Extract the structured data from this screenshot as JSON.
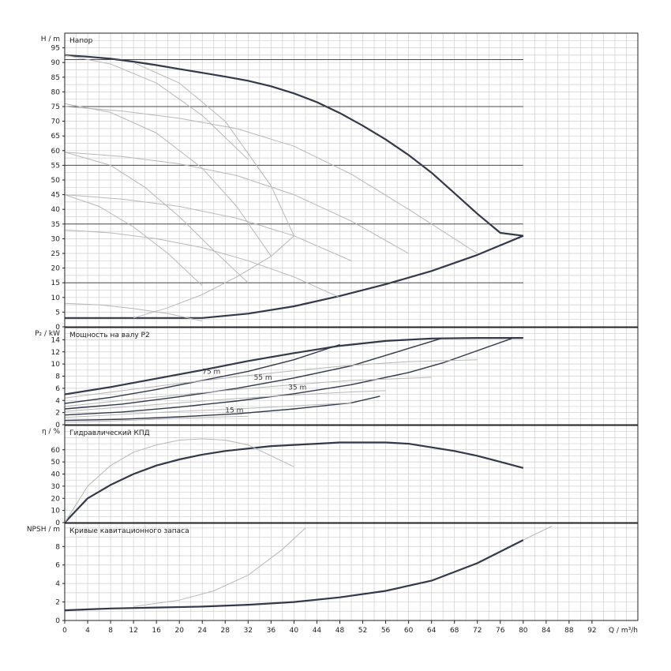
{
  "chart_data": [
    {
      "type": "line",
      "title": "Напор",
      "ylabel": "H / m",
      "xlim": [
        0,
        100
      ],
      "ylim": [
        0,
        100
      ],
      "yticks": [
        0,
        5,
        10,
        15,
        20,
        25,
        30,
        35,
        40,
        45,
        50,
        55,
        60,
        65,
        70,
        75,
        80,
        85,
        90,
        95
      ],
      "grid": true,
      "series": [
        {
          "role": "main",
          "x": [
            0,
            4,
            8,
            12,
            16,
            20,
            24,
            28,
            32,
            36,
            40,
            44,
            48,
            52,
            56,
            60,
            64,
            68,
            72,
            76,
            80
          ],
          "y": [
            92.5,
            92,
            91.3,
            90.3,
            89.1,
            87.8,
            86.5,
            85.2,
            83.8,
            81.9,
            79.5,
            76.5,
            72.8,
            68.5,
            63.8,
            58.5,
            52.5,
            45.5,
            38.5,
            32,
            31
          ]
        },
        {
          "role": "main",
          "x": [
            0,
            8,
            16,
            24,
            32,
            40,
            48,
            56,
            64,
            72,
            80
          ],
          "y": [
            3,
            3,
            3,
            3,
            4.5,
            7,
            10.5,
            14.5,
            19,
            24.5,
            31
          ]
        },
        {
          "role": "guide",
          "x": [
            0,
            80
          ],
          "y": [
            91,
            91
          ]
        },
        {
          "role": "guide",
          "x": [
            0,
            80
          ],
          "y": [
            75,
            75
          ]
        },
        {
          "role": "guide",
          "x": [
            0,
            80
          ],
          "y": [
            55,
            55
          ]
        },
        {
          "role": "guide",
          "x": [
            0,
            80
          ],
          "y": [
            35,
            35
          ]
        },
        {
          "role": "guide",
          "x": [
            0,
            80
          ],
          "y": [
            15,
            15
          ]
        },
        {
          "role": "thin",
          "x": [
            0,
            10,
            20,
            30,
            40,
            50,
            60,
            72
          ],
          "y": [
            75,
            73.5,
            71,
            67.5,
            61.5,
            52,
            40,
            25
          ]
        },
        {
          "role": "thin",
          "x": [
            0,
            10,
            20,
            30,
            40,
            50,
            60
          ],
          "y": [
            59.5,
            58,
            55.5,
            51.5,
            45,
            36,
            25
          ]
        },
        {
          "role": "thin",
          "x": [
            0,
            10,
            20,
            30,
            40,
            50
          ],
          "y": [
            45,
            43.5,
            41,
            37,
            31,
            22.5
          ]
        },
        {
          "role": "thin",
          "x": [
            0,
            8,
            16,
            24,
            32,
            40,
            48
          ],
          "y": [
            33,
            32,
            30,
            27,
            22.5,
            17,
            10
          ]
        },
        {
          "role": "thin",
          "x": [
            0,
            6,
            12,
            18,
            24
          ],
          "y": [
            8,
            7.5,
            6.2,
            4.5,
            2
          ]
        },
        {
          "role": "thin",
          "x": [
            0,
            8,
            16,
            24,
            32
          ],
          "y": [
            92.5,
            89.5,
            83,
            72,
            57
          ]
        },
        {
          "role": "thin",
          "x": [
            12,
            20,
            28,
            36,
            40
          ],
          "y": [
            90,
            83,
            70,
            48,
            31
          ]
        },
        {
          "role": "thin",
          "x": [
            0,
            8,
            16,
            24,
            30,
            36
          ],
          "y": [
            76,
            73,
            66,
            54,
            41,
            24
          ]
        },
        {
          "role": "thin",
          "x": [
            0,
            8,
            14,
            20,
            26,
            32
          ],
          "y": [
            59.5,
            55,
            47.5,
            37.5,
            26,
            15
          ]
        },
        {
          "role": "thin",
          "x": [
            0,
            6,
            12,
            18,
            24
          ],
          "y": [
            45,
            41,
            34,
            25,
            14
          ]
        },
        {
          "role": "thin",
          "x": [
            12,
            18,
            24,
            30,
            36,
            40
          ],
          "y": [
            3,
            6.5,
            11,
            17,
            24,
            31
          ]
        }
      ]
    },
    {
      "type": "line",
      "title": "Мощность на валу P2",
      "ylabel": "P₂ / kW",
      "xlim": [
        0,
        100
      ],
      "ylim": [
        0,
        16
      ],
      "yticks": [
        0,
        2,
        4,
        6,
        8,
        10,
        12,
        14
      ],
      "grid": true,
      "annotations": [
        {
          "text": "75 m",
          "x": 24,
          "y": 8.4
        },
        {
          "text": "55 m",
          "x": 33,
          "y": 7.4
        },
        {
          "text": "35 m",
          "x": 39,
          "y": 5.8
        },
        {
          "text": "15 m",
          "x": 28,
          "y": 2.0
        }
      ],
      "series": [
        {
          "role": "main",
          "x": [
            0,
            8,
            16,
            24,
            32,
            40,
            48,
            56,
            64,
            72,
            80
          ],
          "y": [
            5,
            6.2,
            7.6,
            9,
            10.5,
            11.8,
            13,
            13.8,
            14.2,
            14.3,
            14.3
          ]
        },
        {
          "role": "main",
          "x": [
            0,
            8,
            16,
            24,
            32,
            40,
            48
          ],
          "y": [
            3.5,
            4.5,
            5.8,
            7.3,
            8.8,
            10.7,
            13.2
          ]
        },
        {
          "role": "main",
          "x": [
            0,
            10,
            20,
            30,
            40,
            50,
            66
          ],
          "y": [
            2.6,
            3.4,
            4.6,
            6,
            7.7,
            9.7,
            14.3
          ]
        },
        {
          "role": "main",
          "x": [
            0,
            10,
            20,
            30,
            40,
            50,
            60,
            66,
            78
          ],
          "y": [
            1.6,
            2.1,
            2.9,
            3.9,
            5.1,
            6.6,
            8.6,
            10.2,
            14.2
          ]
        },
        {
          "role": "main",
          "x": [
            0,
            10,
            20,
            30,
            40,
            50,
            55
          ],
          "y": [
            0.7,
            0.9,
            1.3,
            1.8,
            2.6,
            3.6,
            4.7
          ]
        },
        {
          "role": "thin",
          "x": [
            0,
            10,
            20,
            30,
            40,
            50,
            60,
            72
          ],
          "y": [
            4.4,
            5.6,
            6.8,
            7.9,
            8.9,
            9.8,
            10.4,
            10.7
          ]
        },
        {
          "role": "thin",
          "x": [
            0,
            10,
            20,
            30,
            40,
            50,
            64
          ],
          "y": [
            3,
            4,
            4.9,
            5.8,
            6.6,
            7.3,
            7.8
          ]
        },
        {
          "role": "thin",
          "x": [
            0,
            10,
            20,
            30,
            40,
            50,
            56
          ],
          "y": [
            2.2,
            2.9,
            3.6,
            4.3,
            4.9,
            5.4,
            5.6
          ]
        },
        {
          "role": "thin",
          "x": [
            0,
            10,
            20,
            30,
            40,
            50
          ],
          "y": [
            1.2,
            1.7,
            2.2,
            2.6,
            3.1,
            3.6
          ]
        },
        {
          "role": "thin",
          "x": [
            0,
            8,
            16,
            24,
            32
          ],
          "y": [
            0.4,
            0.6,
            0.9,
            1.2,
            1.4
          ]
        }
      ]
    },
    {
      "type": "line",
      "title": "Гидравлический КПД",
      "ylabel": "η / %",
      "xlim": [
        0,
        100
      ],
      "ylim": [
        0,
        80
      ],
      "yticks": [
        0,
        10,
        20,
        30,
        40,
        50,
        60
      ],
      "grid": true,
      "series": [
        {
          "role": "main",
          "x": [
            0,
            4,
            8,
            12,
            16,
            20,
            24,
            28,
            32,
            36,
            40,
            44,
            48,
            52,
            56,
            60,
            64,
            68,
            72,
            76,
            80
          ],
          "y": [
            0,
            20,
            31,
            40,
            47,
            52,
            56,
            59,
            61,
            63,
            64,
            65,
            66,
            66,
            66,
            65,
            62,
            59,
            55,
            50,
            45
          ]
        },
        {
          "role": "thin",
          "x": [
            0,
            4,
            8,
            12,
            16,
            20,
            24,
            28,
            32,
            36,
            40
          ],
          "y": [
            0,
            30,
            47,
            58,
            64,
            68,
            69,
            68,
            64,
            55,
            46
          ]
        }
      ]
    },
    {
      "type": "line",
      "title": "Кривые кавитационного запаса",
      "ylabel": "NPSH / m",
      "xlim": [
        0,
        100
      ],
      "ylim": [
        0,
        10.5
      ],
      "yticks": [
        0,
        2,
        4,
        6,
        8
      ],
      "grid": true,
      "series": [
        {
          "role": "main",
          "x": [
            0,
            8,
            16,
            24,
            32,
            40,
            48,
            56,
            64,
            72,
            80
          ],
          "y": [
            1.1,
            1.3,
            1.4,
            1.5,
            1.7,
            2,
            2.5,
            3.2,
            4.3,
            6.2,
            8.7
          ]
        },
        {
          "role": "thin",
          "x": [
            80,
            85
          ],
          "y": [
            8.7,
            10.2
          ]
        },
        {
          "role": "thin",
          "x": [
            12,
            20,
            26,
            32,
            38,
            42
          ],
          "y": [
            1.5,
            2.2,
            3.2,
            4.9,
            7.7,
            10
          ]
        }
      ]
    }
  ],
  "shared_x": {
    "label": "Q / m³/h",
    "ticks": [
      0,
      4,
      8,
      12,
      16,
      20,
      24,
      28,
      32,
      36,
      40,
      44,
      48,
      52,
      56,
      60,
      64,
      68,
      72,
      76,
      80,
      84,
      88,
      92
    ]
  },
  "colors": {
    "main": "#33384a",
    "thin": "#b8b8b8",
    "guide": "#4a4a4a",
    "grid": "#cfcfcf",
    "frame": "#222222"
  }
}
